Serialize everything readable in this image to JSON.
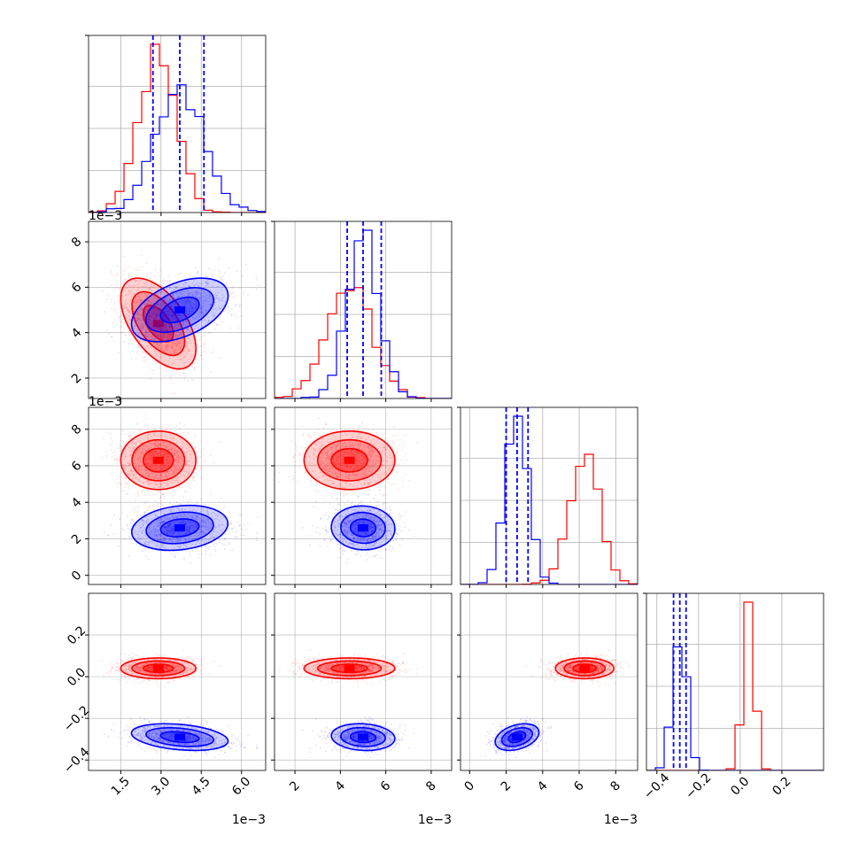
{
  "figure": {
    "type": "corner-plot"
  },
  "colors": {
    "red": "#ff0000",
    "blue": "#0000ff",
    "grid": "#b0b0b0",
    "axes": "#000000"
  },
  "params": [
    {
      "range": [
        0.0003,
        0.0069
      ],
      "ticks": [
        0.0015,
        0.003,
        0.0045,
        0.006
      ],
      "tick_labels": [
        "1.5",
        "3.0",
        "4.5",
        "6.0"
      ],
      "offset_text": "1e−3"
    },
    {
      "range": [
        0.0011,
        0.0089
      ],
      "ticks": [
        0.002,
        0.004,
        0.006,
        0.008
      ],
      "tick_labels": [
        "2",
        "4",
        "6",
        "8"
      ],
      "offset_text": "1e−3"
    },
    {
      "range": [
        -0.0005,
        0.0092
      ],
      "ticks": [
        0.0,
        0.002,
        0.004,
        0.006,
        0.008
      ],
      "tick_labels": [
        "0",
        "2",
        "4",
        "6",
        "8"
      ],
      "offset_text": "1e−3"
    },
    {
      "range": [
        -0.45,
        0.4
      ],
      "ticks": [
        -0.4,
        -0.2,
        0.0,
        0.2
      ],
      "tick_labels": [
        "−0.4",
        "−0.2",
        "0.0",
        "0.2"
      ],
      "offset_text": ""
    }
  ],
  "chart_data": {
    "type": "corner",
    "series": [
      {
        "name": "red",
        "color": "#ff0000",
        "mean": [
          0.0029,
          0.0044,
          0.0063,
          0.04
        ],
        "std": [
          0.0007,
          0.001,
          0.0008,
          0.025
        ],
        "corr": [
          [
            1,
            -0.55,
            0,
            0
          ],
          [
            -0.55,
            1,
            0,
            0
          ],
          [
            0,
            0,
            1,
            0
          ],
          [
            0,
            0,
            0,
            1
          ]
        ]
      },
      {
        "name": "blue",
        "color": "#0000ff",
        "mean": [
          0.0037,
          0.005,
          0.0026,
          -0.29
        ],
        "std": [
          0.0009,
          0.0007,
          0.0006,
          0.032
        ],
        "corr": [
          [
            1,
            0.45,
            0,
            -0.3
          ],
          [
            0.45,
            1,
            0,
            0
          ],
          [
            0,
            0,
            1,
            0.35
          ],
          [
            -0.3,
            0,
            0.35,
            1
          ]
        ],
        "quantile_lines": [
          [
            0.0027,
            0.0037,
            0.0046
          ],
          [
            0.0043,
            0.005,
            0.0058
          ],
          [
            0.002,
            0.0026,
            0.0032
          ],
          [
            -0.32,
            -0.29,
            -0.26
          ]
        ]
      }
    ]
  }
}
